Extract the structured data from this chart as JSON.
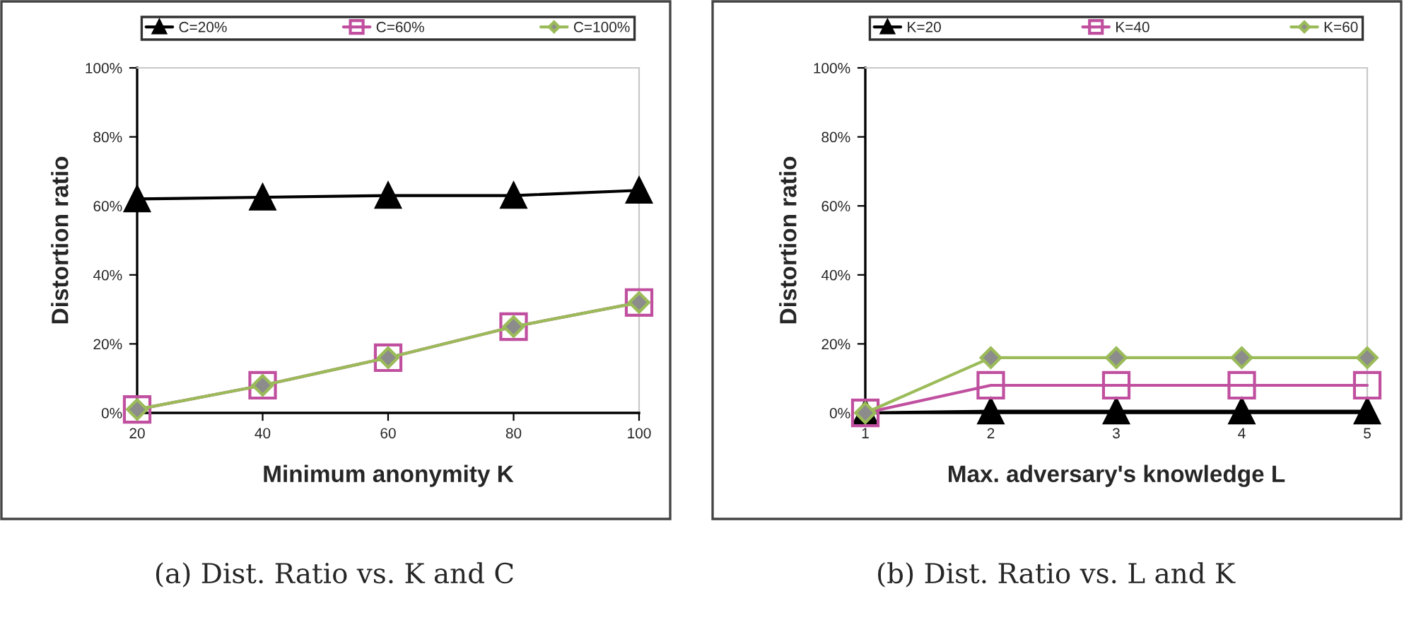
{
  "chart_data": [
    {
      "type": "line",
      "categories": [
        "20",
        "40",
        "60",
        "80",
        "100"
      ],
      "xlabel": "Minimum anonymity K",
      "ylabel": "Distortion ratio",
      "ylim": [
        0,
        100
      ],
      "yticks": [
        {
          "value": 0,
          "label": "0%"
        },
        {
          "value": 20,
          "label": "20%"
        },
        {
          "value": 40,
          "label": "40%"
        },
        {
          "value": 60,
          "label": "60%"
        },
        {
          "value": 80,
          "label": "80%"
        },
        {
          "value": 100,
          "label": "100%"
        }
      ],
      "legend": "top",
      "annotations": [
        "(a) Dist. Ratio vs. K and C"
      ],
      "series": [
        {
          "name": "C=20%",
          "color": "#000000",
          "marker": "triangle",
          "values": [
            62,
            62.5,
            63,
            63,
            64.5
          ]
        },
        {
          "name": "C=60%",
          "color": "#c0509f",
          "marker": "square",
          "values": [
            1,
            8,
            16,
            25,
            32
          ]
        },
        {
          "name": "C=100%",
          "color": "#9bbb59",
          "marker": "diamond",
          "values": [
            1,
            8,
            16,
            25,
            32
          ]
        }
      ]
    },
    {
      "type": "line",
      "categories": [
        "1",
        "2",
        "3",
        "4",
        "5"
      ],
      "xlabel": "Max. adversary's knowledge L",
      "ylabel": "Distortion ratio",
      "ylim": [
        0,
        100
      ],
      "yticks": [
        {
          "value": 0,
          "label": "0%"
        },
        {
          "value": 20,
          "label": "20%"
        },
        {
          "value": 40,
          "label": "40%"
        },
        {
          "value": 60,
          "label": "60%"
        },
        {
          "value": 80,
          "label": "80%"
        },
        {
          "value": 100,
          "label": "100%"
        }
      ],
      "legend": "top",
      "annotations": [
        "(b) Dist. Ratio vs. L and K"
      ],
      "series": [
        {
          "name": "K=20",
          "color": "#000000",
          "marker": "triangle",
          "values": [
            0,
            0.5,
            0.5,
            0.5,
            0.5
          ]
        },
        {
          "name": "K=40",
          "color": "#c0509f",
          "marker": "square",
          "values": [
            0,
            8,
            8,
            8,
            8
          ]
        },
        {
          "name": "K=60",
          "color": "#9bbb59",
          "marker": "diamond",
          "values": [
            0,
            16,
            16,
            16,
            16
          ]
        }
      ]
    }
  ]
}
